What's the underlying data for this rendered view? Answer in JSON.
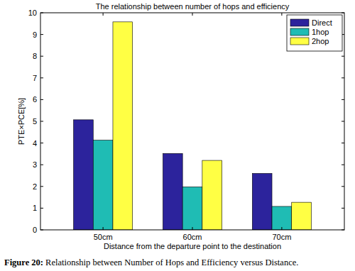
{
  "chart_data": {
    "type": "bar",
    "title": "The relationship between number of hops and efficiency",
    "x_label": "Distance from the departure point to the destination",
    "y_label": "PTE×PCE[%]",
    "caption": "Figure 20: Relationship between Number of Hops and Efficiency versus Distance.",
    "categories": [
      "50cm",
      "60cm",
      "70cm"
    ],
    "series": [
      {
        "name": "Direct",
        "color": "#2c239c",
        "values": [
          5.07,
          3.52,
          2.6
        ]
      },
      {
        "name": "1hop",
        "color": "#1fbcb4",
        "values": [
          4.13,
          1.98,
          1.08
        ]
      },
      {
        "name": "2hop",
        "color": "#ffff44",
        "values": [
          9.58,
          3.2,
          1.27
        ]
      }
    ],
    "ylim": [
      0,
      10
    ],
    "yticks": [
      0,
      1,
      2,
      3,
      4,
      5,
      6,
      7,
      8,
      9,
      10
    ],
    "grid": false,
    "legend": "top-right"
  }
}
